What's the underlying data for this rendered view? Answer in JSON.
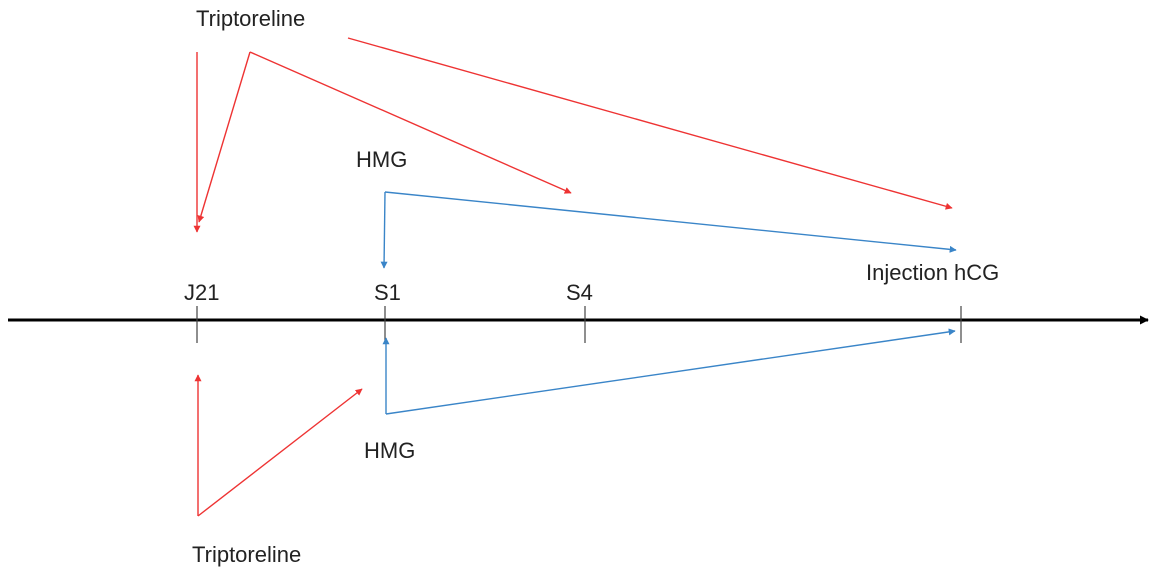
{
  "colors": {
    "axis": "#000000",
    "triptoreline": "#ee3333",
    "hmg": "#3a85c8",
    "text": "#222222"
  },
  "timeline": {
    "markers": [
      {
        "id": "j21",
        "label": "J21"
      },
      {
        "id": "s1",
        "label": "S1"
      },
      {
        "id": "s4",
        "label": "S4"
      },
      {
        "id": "hcg",
        "label": "Injection hCG"
      }
    ]
  },
  "labels": {
    "triptoreline_top": "Triptoreline",
    "hmg_top": "HMG",
    "hmg_bottom": "HMG",
    "triptoreline_bottom": "Triptoreline"
  }
}
